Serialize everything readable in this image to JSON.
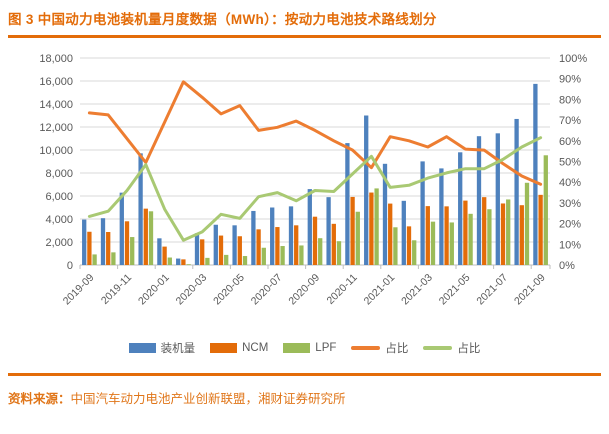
{
  "title": "图 3  中国动力电池装机量月度数据（MWh）：按动力电池技术路线划分",
  "source": {
    "prefix": "资料来源：",
    "text": "中国汽车动力电池产业创新联盟，湘财证券研究所"
  },
  "colors": {
    "title_text": "#E36C09",
    "accent_rule": "#E36C09",
    "source_text": "#E0761A",
    "installed_bar": "#4E81BD",
    "ncm_bar": "#E36C09",
    "lpf_bar": "#9BBB59",
    "ncm_line": "#ED7D31",
    "lpf_line": "#A9C973",
    "axis_text": "#595959",
    "legend_text": "#595959",
    "gridline": "#D9D9D9",
    "axis_line": "#BFBFBF"
  },
  "legend": {
    "items": [
      {
        "id": "installed",
        "label": "装机量",
        "type": "bar",
        "color_key": "installed_bar"
      },
      {
        "id": "ncm",
        "label": "NCM",
        "type": "bar",
        "color_key": "ncm_bar"
      },
      {
        "id": "lpf",
        "label": "LPF",
        "type": "bar",
        "color_key": "lpf_bar"
      },
      {
        "id": "ncm-share",
        "label": "占比",
        "type": "line",
        "color_key": "ncm_line"
      },
      {
        "id": "lpf-share",
        "label": "占比",
        "type": "line",
        "color_key": "lpf_line"
      }
    ]
  },
  "chart_data": {
    "type": "combo-bar-line",
    "title": "中国动力电池装机量月度数据（MWh）：按动力电池技术路线划分",
    "categories": [
      "2019-09",
      "2019-10",
      "2019-11",
      "2019-12",
      "2020-01",
      "2020-02",
      "2020-03",
      "2020-04",
      "2020-05",
      "2020-06",
      "2020-07",
      "2020-08",
      "2020-09",
      "2020-10",
      "2020-11",
      "2020-12",
      "2021-01",
      "2021-02",
      "2021-03",
      "2021-04",
      "2021-05",
      "2021-06",
      "2021-07",
      "2021-08",
      "2021-09"
    ],
    "x_tick_labels": [
      "2019-09",
      "2019-11",
      "2020-01",
      "2020-03",
      "2020-05",
      "2020-07",
      "2020-09",
      "2020-11",
      "2021-01",
      "2021-03",
      "2021-05",
      "2021-07",
      "2021-09"
    ],
    "bar_series": [
      {
        "name": "装机量",
        "color_key": "installed_bar",
        "axis": "left",
        "values": [
          3950,
          4070,
          6290,
          9710,
          2320,
          560,
          2760,
          3500,
          3450,
          4700,
          5000,
          5100,
          6600,
          5900,
          10600,
          13000,
          8800,
          5580,
          9010,
          8400,
          9800,
          11200,
          11450,
          12700,
          15750
        ]
      },
      {
        "name": "NCM",
        "color_key": "ncm_bar",
        "axis": "left",
        "values": [
          2890,
          2870,
          3800,
          4900,
          1600,
          490,
          2230,
          2560,
          2500,
          3100,
          3300,
          3450,
          4200,
          3580,
          5920,
          6300,
          5340,
          3360,
          5120,
          5100,
          5600,
          5900,
          5350,
          5200,
          6100
        ]
      },
      {
        "name": "LPF",
        "color_key": "lpf_bar",
        "axis": "left",
        "values": [
          920,
          1100,
          2430,
          4670,
          650,
          70,
          620,
          880,
          780,
          1500,
          1650,
          1700,
          2330,
          2070,
          4630,
          6660,
          3280,
          2150,
          3770,
          3700,
          4450,
          4850,
          5700,
          7150,
          9540
        ]
      }
    ],
    "line_series": [
      {
        "name": "占比",
        "color_key": "ncm_line",
        "axis": "right",
        "values_pct": [
          73.5,
          72.5,
          61,
          49.5,
          69,
          88.5,
          81,
          73,
          77,
          65,
          66.5,
          69.5,
          65,
          60,
          55.5,
          47,
          62,
          60,
          57,
          62,
          56,
          55.5,
          49,
          43,
          39
        ]
      },
      {
        "name": "占比",
        "color_key": "lpf_line",
        "axis": "right",
        "values_pct": [
          23.5,
          26,
          36,
          48.5,
          27,
          12,
          16,
          24.5,
          22.5,
          33,
          35,
          31,
          36,
          35.5,
          44,
          52.5,
          37.5,
          38.5,
          42,
          44.5,
          46.5,
          46.5,
          51,
          57,
          61.5
        ]
      }
    ],
    "left_axis": {
      "min": 0,
      "max": 18000,
      "step": 2000,
      "tick_labels": [
        "0",
        "2,000",
        "4,000",
        "6,000",
        "8,000",
        "10,000",
        "12,000",
        "14,000",
        "16,000",
        "18,000"
      ]
    },
    "right_axis": {
      "min": 0,
      "max": 100,
      "step": 10,
      "tick_labels": [
        "0%",
        "10%",
        "20%",
        "30%",
        "40%",
        "50%",
        "60%",
        "70%",
        "80%",
        "90%",
        "100%"
      ]
    },
    "grid": true,
    "legend_position": "bottom"
  }
}
